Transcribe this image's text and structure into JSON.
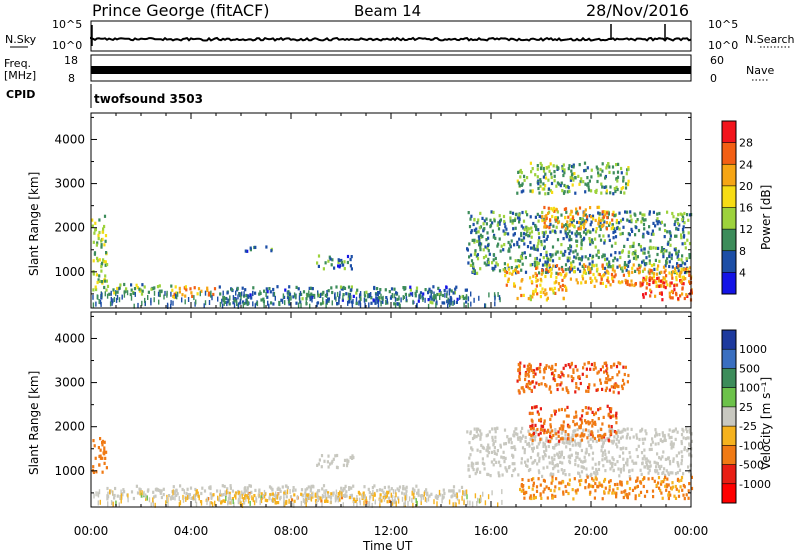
{
  "header": {
    "station": "Prince George (fitACF)",
    "beam": "Beam 14",
    "date": "28/Nov/2016"
  },
  "strip": {
    "nsky_label": "N.Sky",
    "nsky_ticks": [
      "10^5",
      "10^0"
    ],
    "nsearch_label": "N.Search",
    "nsearch_ticks": [
      "10^5",
      "10^0"
    ],
    "freq_label_1": "Freq.",
    "freq_label_2": "[MHz]",
    "freq_ticks": [
      "18",
      "8"
    ],
    "nave_label": "Nave",
    "nave_ticks": [
      "60",
      "0"
    ],
    "cpid_label": "CPID",
    "cpid_value": "twofsound 3503"
  },
  "panels": {
    "power_cbar_title": "Power [dB]",
    "power_cbar_ticks": [
      "28",
      "24",
      "20",
      "16",
      "12",
      "8",
      "4"
    ],
    "velocity_cbar_title": "Velocity [m s⁻¹]",
    "velocity_cbar_ticks": [
      "1000",
      "500",
      "100",
      "25",
      "-25",
      "-100",
      "-500",
      "-1000"
    ]
  },
  "colors": {
    "power_scale": [
      "#f2141c",
      "#f35f14",
      "#f6a514",
      "#f7dc14",
      "#9dd23c",
      "#3c8c5a",
      "#1c4ea6",
      "#1414e6"
    ],
    "velocity_scale": [
      "#1e3a9e",
      "#3a6fc0",
      "#3c8c5a",
      "#6cc24a",
      "#c8c8c0",
      "#f5b21e",
      "#f07a14",
      "#e81e14",
      "#ff0000"
    ]
  },
  "chart_data": [
    {
      "type": "heatmap",
      "title": "Power",
      "xlabel": "",
      "ylabel": "Slant Range [km]",
      "xlim": [
        "00:00",
        "24:00"
      ],
      "ylim": [
        180,
        4600
      ],
      "x_ticks": [
        "00:00",
        "04:00",
        "08:00",
        "12:00",
        "16:00",
        "20:00",
        "00:00"
      ],
      "y_ticks": [
        1000,
        2000,
        3000,
        4000
      ],
      "colorbar": {
        "label": "Power [dB]",
        "ticks": [
          4,
          8,
          12,
          16,
          20,
          24,
          28
        ]
      },
      "regions": [
        {
          "t0": 0.0,
          "t1": 0.6,
          "r0": 600,
          "r1": 2300,
          "value": 14
        },
        {
          "t0": 0.6,
          "t1": 3.2,
          "r0": 500,
          "r1": 750,
          "value": 12
        },
        {
          "t0": 3.2,
          "t1": 5.0,
          "r0": 450,
          "r1": 700,
          "value": 22
        },
        {
          "t0": 5.0,
          "t1": 15.0,
          "r0": 300,
          "r1": 700,
          "value": 8
        },
        {
          "t0": 9.0,
          "t1": 10.5,
          "r0": 1100,
          "r1": 1400,
          "value": 8
        },
        {
          "t0": 6.0,
          "t1": 7.5,
          "r0": 1500,
          "r1": 1600,
          "value": 8
        },
        {
          "t0": 15.0,
          "t1": 24.0,
          "r0": 1000,
          "r1": 2400,
          "value": 10
        },
        {
          "t0": 16.5,
          "t1": 24.0,
          "r0": 700,
          "r1": 1200,
          "value": 22
        },
        {
          "t0": 18.0,
          "t1": 21.0,
          "r0": 2000,
          "r1": 2500,
          "value": 22
        },
        {
          "t0": 17.0,
          "t1": 19.0,
          "r0": 400,
          "r1": 700,
          "value": 20
        },
        {
          "t0": 22.0,
          "t1": 24.0,
          "r0": 400,
          "r1": 900,
          "value": 28
        },
        {
          "t0": 17.0,
          "t1": 21.5,
          "r0": 2800,
          "r1": 3500,
          "value": 12
        }
      ]
    },
    {
      "type": "heatmap",
      "title": "Velocity",
      "xlabel": "Time UT",
      "ylabel": "Slant Range [km]",
      "xlim": [
        "00:00",
        "24:00"
      ],
      "ylim": [
        180,
        4600
      ],
      "x_ticks": [
        "00:00",
        "04:00",
        "08:00",
        "12:00",
        "16:00",
        "20:00",
        "00:00"
      ],
      "y_ticks": [
        1000,
        2000,
        3000,
        4000
      ],
      "colorbar": {
        "label": "Velocity [m s⁻¹]",
        "ticks": [
          1000,
          500,
          100,
          25,
          -25,
          -100,
          -500,
          -1000
        ]
      },
      "regions": [
        {
          "t0": 0.0,
          "t1": 0.6,
          "r0": 1000,
          "r1": 1800,
          "value": -300
        },
        {
          "t0": 0.6,
          "t1": 15.0,
          "r0": 400,
          "r1": 700,
          "value": 0
        },
        {
          "t0": 4.0,
          "t1": 12.0,
          "r0": 300,
          "r1": 550,
          "value": -60
        },
        {
          "t0": 9.0,
          "t1": 10.5,
          "r0": 1100,
          "r1": 1400,
          "value": 0
        },
        {
          "t0": 15.0,
          "t1": 24.0,
          "r0": 900,
          "r1": 2000,
          "value": 0
        },
        {
          "t0": 17.5,
          "t1": 21.0,
          "r0": 1700,
          "r1": 2500,
          "value": -400
        },
        {
          "t0": 17.0,
          "t1": 21.5,
          "r0": 2800,
          "r1": 3500,
          "value": -400
        },
        {
          "t0": 17.0,
          "t1": 24.0,
          "r0": 400,
          "r1": 900,
          "value": -120
        }
      ]
    }
  ]
}
